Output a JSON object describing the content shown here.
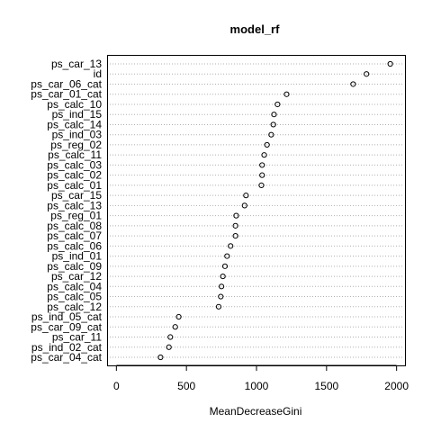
{
  "chart_data": {
    "type": "scatter",
    "title": "model_rf",
    "xlabel": "MeanDecreaseGini",
    "ylabel": "",
    "xlim": [
      -60,
      2060
    ],
    "xticks": [
      0,
      500,
      1000,
      1500,
      2000
    ],
    "grid": "dotted horizontal lines per category",
    "categories": [
      "ps_car_13",
      "id",
      "ps_car_06_cat",
      "ps_car_01_cat",
      "ps_calc_10",
      "ps_ind_15",
      "ps_calc_14",
      "ps_ind_03",
      "ps_reg_02",
      "ps_calc_11",
      "ps_calc_03",
      "ps_calc_02",
      "ps_calc_01",
      "ps_car_15",
      "ps_calc_13",
      "ps_reg_01",
      "ps_calc_08",
      "ps_calc_07",
      "ps_calc_06",
      "ps_ind_01",
      "ps_calc_09",
      "ps_car_12",
      "ps_calc_04",
      "ps_calc_05",
      "ps_calc_12",
      "ps_ind_05_cat",
      "ps_car_09_cat",
      "ps_car_11",
      "ps_ind_02_cat",
      "ps_car_04_cat"
    ],
    "values": [
      1955,
      1785,
      1690,
      1215,
      1150,
      1125,
      1120,
      1105,
      1075,
      1055,
      1040,
      1040,
      1035,
      925,
      915,
      855,
      850,
      850,
      815,
      790,
      775,
      760,
      750,
      745,
      730,
      445,
      420,
      385,
      375,
      315
    ]
  }
}
